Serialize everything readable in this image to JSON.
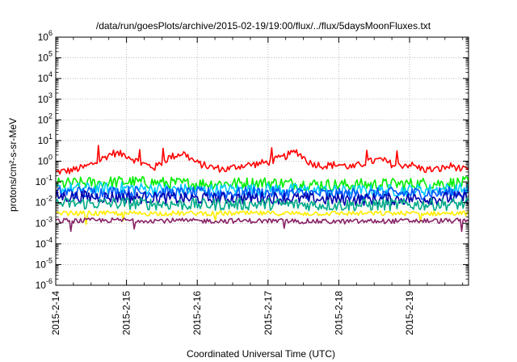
{
  "chart_data": {
    "type": "line",
    "title": "/data/run/goesPlots/archive/2015-02-19/19:00/flux/../flux/5daysMoonFluxes.txt",
    "xlabel": "Coordinated Universal Time (UTC)",
    "ylabel": "protons/cm²-s-sr-MeV",
    "y_scale": "log",
    "ylim_exponent": [
      -6,
      6
    ],
    "x_unit": "days",
    "xlim": [
      "2015-02-14 00:00",
      "2015-02-19 20:00"
    ],
    "x_ticks": [
      "2015-2-14",
      "2015-2-15",
      "2015-2-16",
      "2015-2-17",
      "2015-2-18",
      "2015-2-19"
    ],
    "grid": true,
    "legend": "none",
    "series": [
      {
        "color": "#ff0000",
        "x": [
          0,
          0.2,
          0.4,
          0.6,
          0.8,
          1.0,
          1.2,
          1.4,
          1.6,
          1.8,
          2.0,
          2.2,
          2.4,
          2.6,
          2.8,
          3.0,
          3.2,
          3.4,
          3.6,
          3.8,
          4.0,
          4.2,
          4.4,
          4.6,
          4.8,
          5.0,
          5.2,
          5.4,
          5.6,
          5.8
        ],
        "y": [
          0.3,
          0.35,
          0.5,
          1.0,
          2.5,
          2.0,
          0.8,
          0.5,
          1.5,
          2.5,
          0.8,
          0.5,
          0.4,
          0.6,
          0.7,
          0.9,
          1.5,
          3.0,
          0.8,
          0.6,
          0.7,
          0.5,
          0.9,
          1.2,
          0.6,
          0.7,
          0.4,
          0.4,
          0.6,
          0.35
        ]
      },
      {
        "color": "#00ee00",
        "x": [
          0,
          1,
          2,
          3,
          4,
          5,
          5.8
        ],
        "y": [
          0.08,
          0.1,
          0.08,
          0.09,
          0.07,
          0.08,
          0.09
        ]
      },
      {
        "color": "#00ccff",
        "x": [
          0,
          1,
          2,
          3,
          4,
          5,
          5.8
        ],
        "y": [
          0.045,
          0.05,
          0.04,
          0.045,
          0.035,
          0.04,
          0.045
        ]
      },
      {
        "color": "#0055ff",
        "x": [
          0,
          1,
          2,
          3,
          4,
          5,
          5.8
        ],
        "y": [
          0.03,
          0.032,
          0.028,
          0.03,
          0.025,
          0.028,
          0.03
        ]
      },
      {
        "color": "#0000aa",
        "x": [
          0,
          1,
          2,
          3,
          4,
          5,
          5.8
        ],
        "y": [
          0.02,
          0.018,
          0.015,
          0.017,
          0.014,
          0.015,
          0.017
        ]
      },
      {
        "color": "#00aa88",
        "x": [
          0,
          1,
          2,
          3,
          4,
          5,
          5.8
        ],
        "y": [
          0.009,
          0.009,
          0.008,
          0.0085,
          0.0075,
          0.008,
          0.0085
        ]
      },
      {
        "color": "#ffee00",
        "x": [
          0,
          1,
          2,
          3,
          4,
          5,
          5.8
        ],
        "y": [
          0.003,
          0.003,
          0.003,
          0.003,
          0.003,
          0.003,
          0.003
        ]
      },
      {
        "color": "#882266",
        "x": [
          0,
          1,
          2,
          3,
          4,
          5,
          5.8
        ],
        "y": [
          0.0013,
          0.0014,
          0.0013,
          0.0013,
          0.0012,
          0.0013,
          0.0013
        ]
      }
    ]
  }
}
